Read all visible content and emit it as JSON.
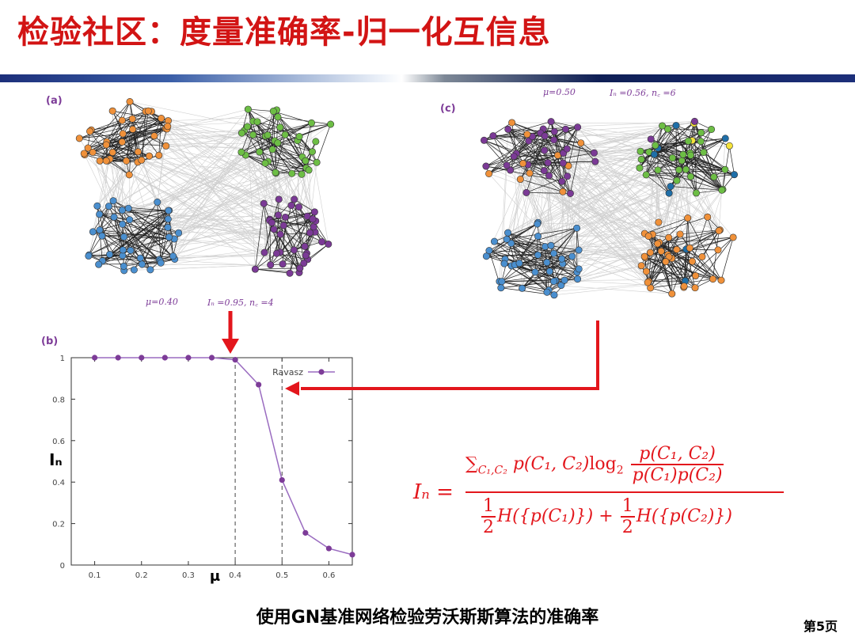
{
  "slide": {
    "title": "检验社区：度量准确率-归一化互信息",
    "caption": "使用GN基准网络检验劳沃斯斯算法的准确率",
    "page_number": "第5页"
  },
  "panels": {
    "a": {
      "label": "(a)",
      "mu_text": "μ=0.40",
      "info_text": "Iₙ =0.95,  n꜀ =4"
    },
    "b": {
      "label": "(b)"
    },
    "c": {
      "label": "(c)",
      "mu_text": "μ=0.50",
      "info_text": "Iₙ =0.56,  n꜀ =6"
    }
  },
  "colors": {
    "title_red": "#d21414",
    "accent_purple": "#7d3c98",
    "arrow_red": "#e3161c",
    "orange_nodes": "#f0913a",
    "green_nodes": "#6dbe45",
    "blue_nodes": "#4a8fcf",
    "purple_nodes": "#7b3a96",
    "yellow_node": "#f5e33a",
    "darkblue_node": "#1f6fa8"
  },
  "chart_data": {
    "type": "line",
    "ylabel": "Iₙ",
    "xlabel": "μ",
    "xlim": [
      0.05,
      0.65
    ],
    "ylim": [
      0,
      1
    ],
    "x_ticks": [
      "0.1",
      "0.2",
      "0.3",
      "0.4",
      "0.5",
      "0.6"
    ],
    "y_ticks": [
      "0",
      "0.2",
      "0.4",
      "0.6",
      "0.8",
      "1"
    ],
    "legend_position": "top-right",
    "vlines": [
      0.4,
      0.5
    ],
    "series": [
      {
        "name": "Ravasz",
        "x": [
          0.1,
          0.15,
          0.2,
          0.25,
          0.3,
          0.35,
          0.4,
          0.45,
          0.5,
          0.55,
          0.6,
          0.65
        ],
        "values": [
          1.0,
          1.0,
          1.0,
          1.0,
          1.0,
          1.0,
          0.99,
          0.87,
          0.41,
          0.155,
          0.08,
          0.05
        ]
      }
    ]
  },
  "formula": {
    "lhs": "Iₙ =",
    "numerator_sum": "∑",
    "numerator_sum_sub": "C₁,C₂",
    "numerator_body": "p(C₁, C₂)",
    "log_text": "log",
    "log_base": "2",
    "frac_top": "p(C₁, C₂)",
    "frac_bottom": "p(C₁)p(C₂)",
    "half_num": "1",
    "half_den": "2",
    "den_term1": "H({p(C₁)})",
    "den_plus": "+",
    "den_term2": "H({p(C₂)})"
  }
}
